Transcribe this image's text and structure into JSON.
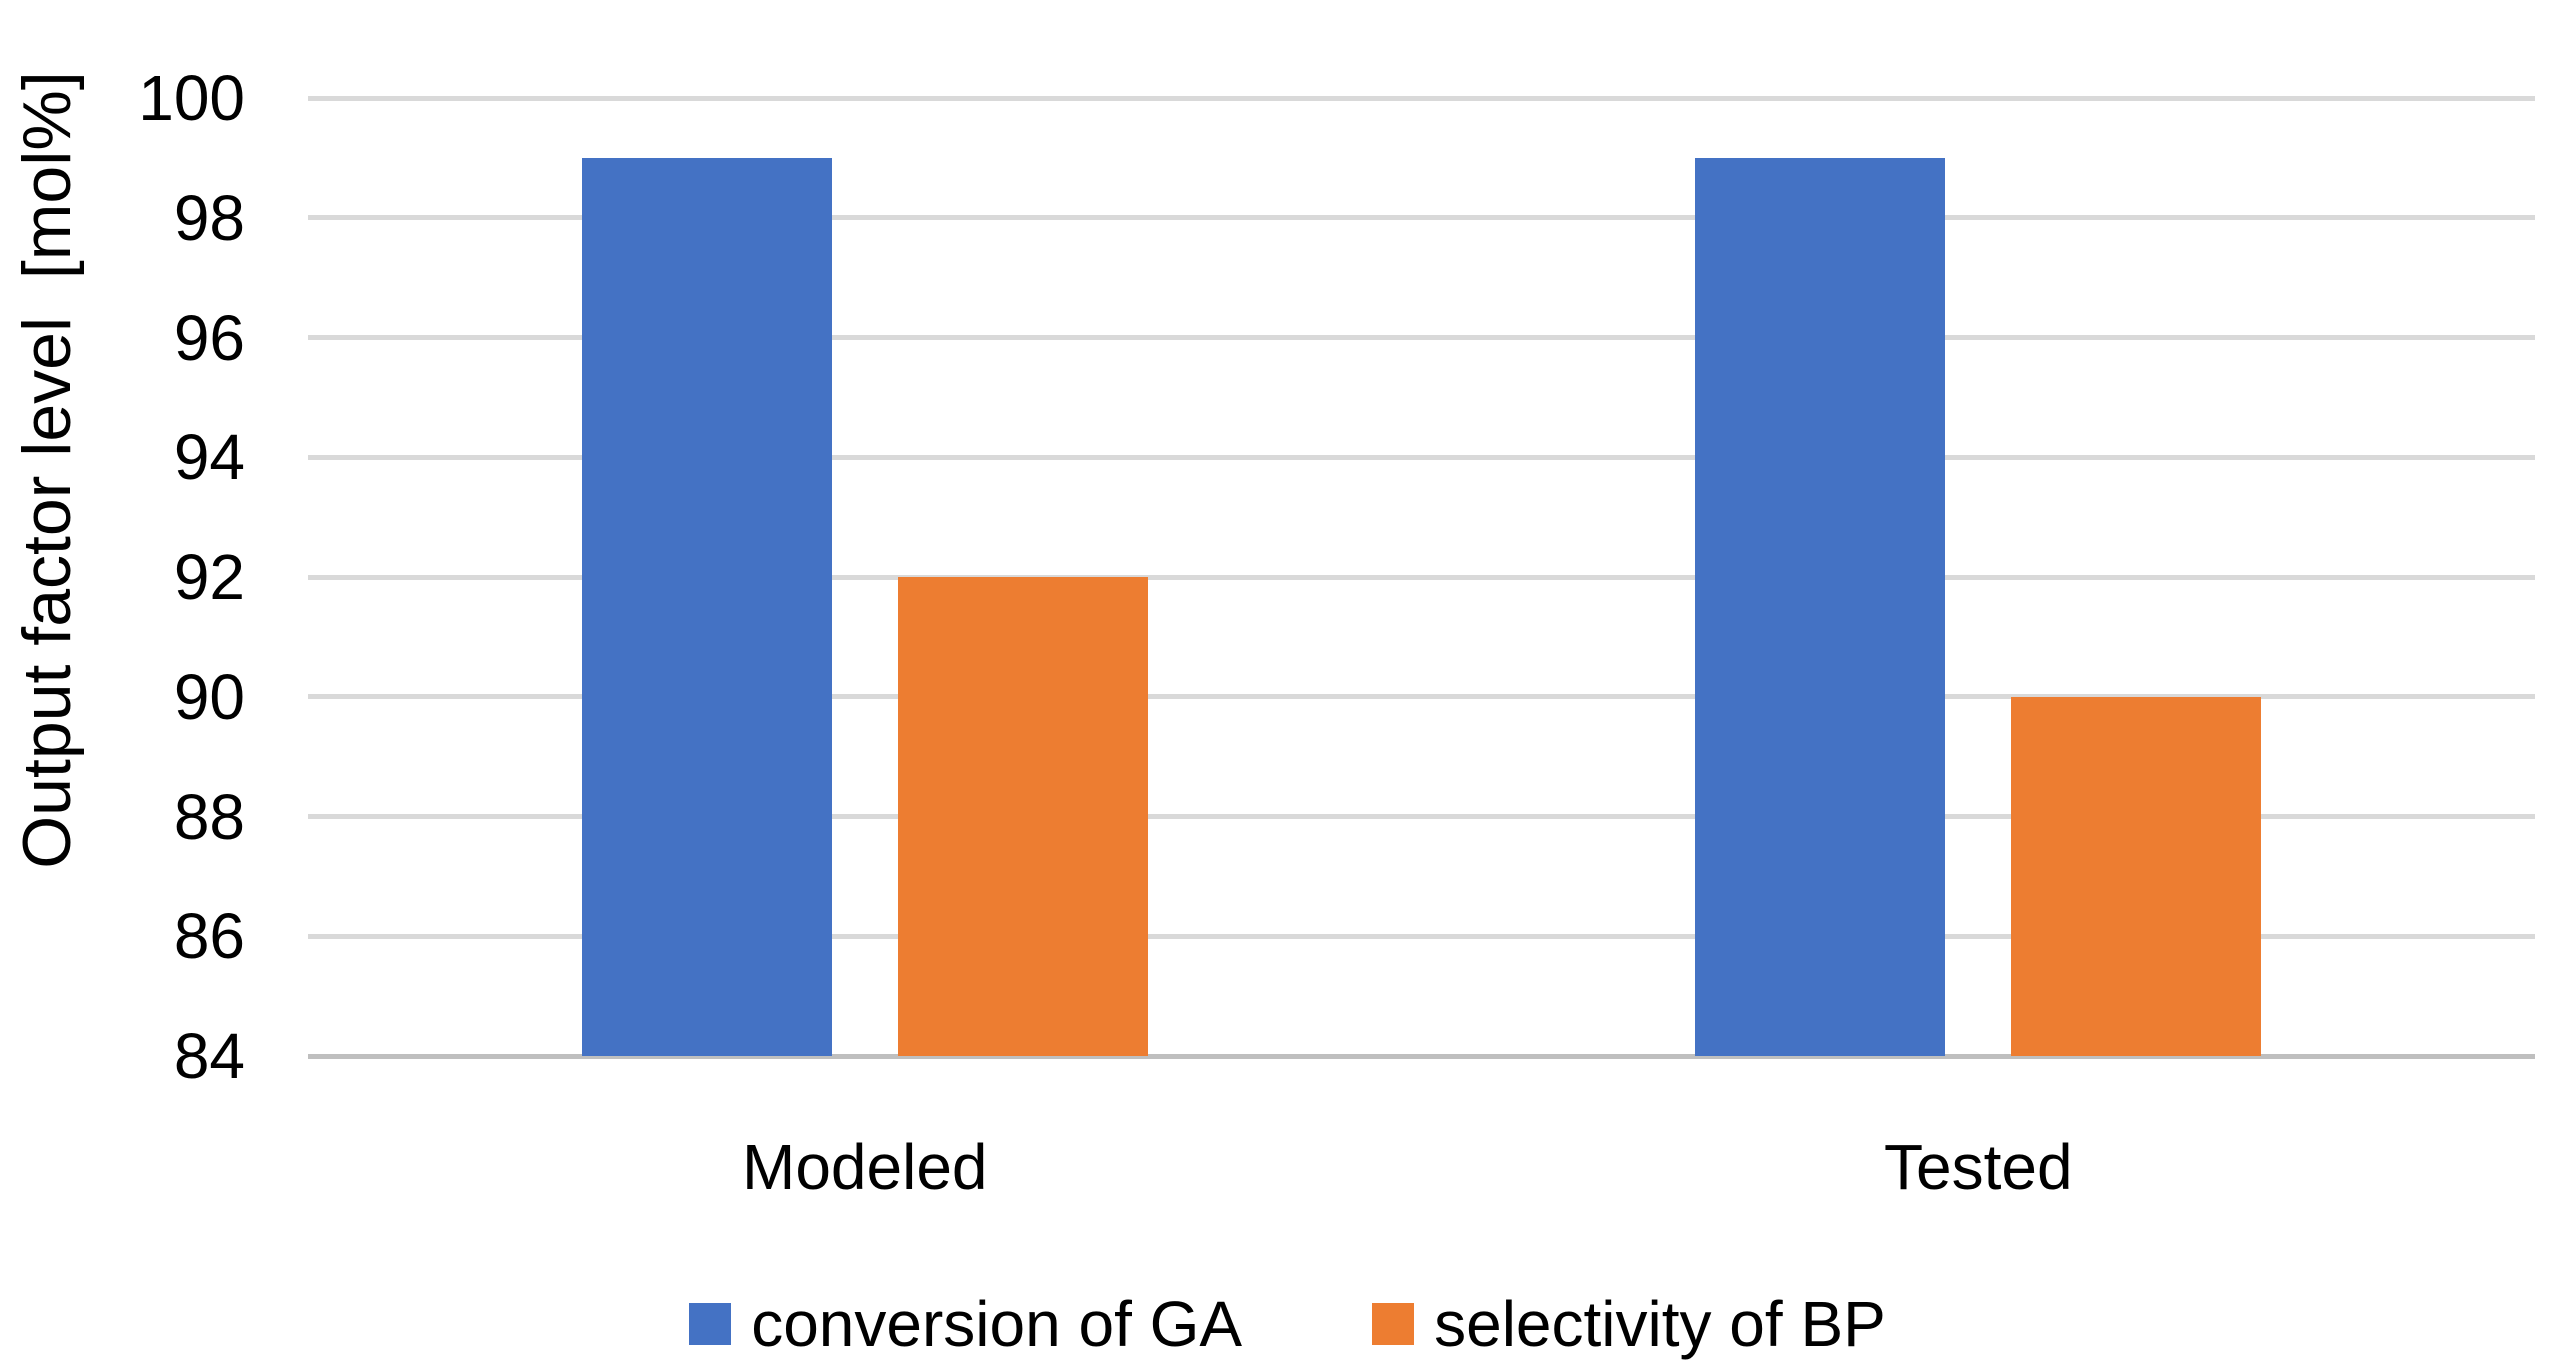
{
  "chart_data": {
    "type": "bar",
    "categories": [
      "Modeled",
      "Tested"
    ],
    "series": [
      {
        "name": "conversion of GA",
        "color": "#4472C4",
        "values": [
          99,
          99
        ]
      },
      {
        "name": "selectivity of BP",
        "color": "#ED7D31",
        "values": [
          92,
          90
        ]
      }
    ],
    "title": "",
    "xlabel": "",
    "ylabel": "Output factor level  [mol%]",
    "ylim": [
      84,
      100
    ],
    "yticks": [
      84,
      86,
      88,
      90,
      92,
      94,
      96,
      98,
      100
    ],
    "grid": true,
    "legend_position": "bottom"
  },
  "colors": {
    "gridline": "#D9D9D9",
    "axis_line": "#BFBFBF",
    "text": "#000000",
    "background": "#FFFFFF"
  }
}
